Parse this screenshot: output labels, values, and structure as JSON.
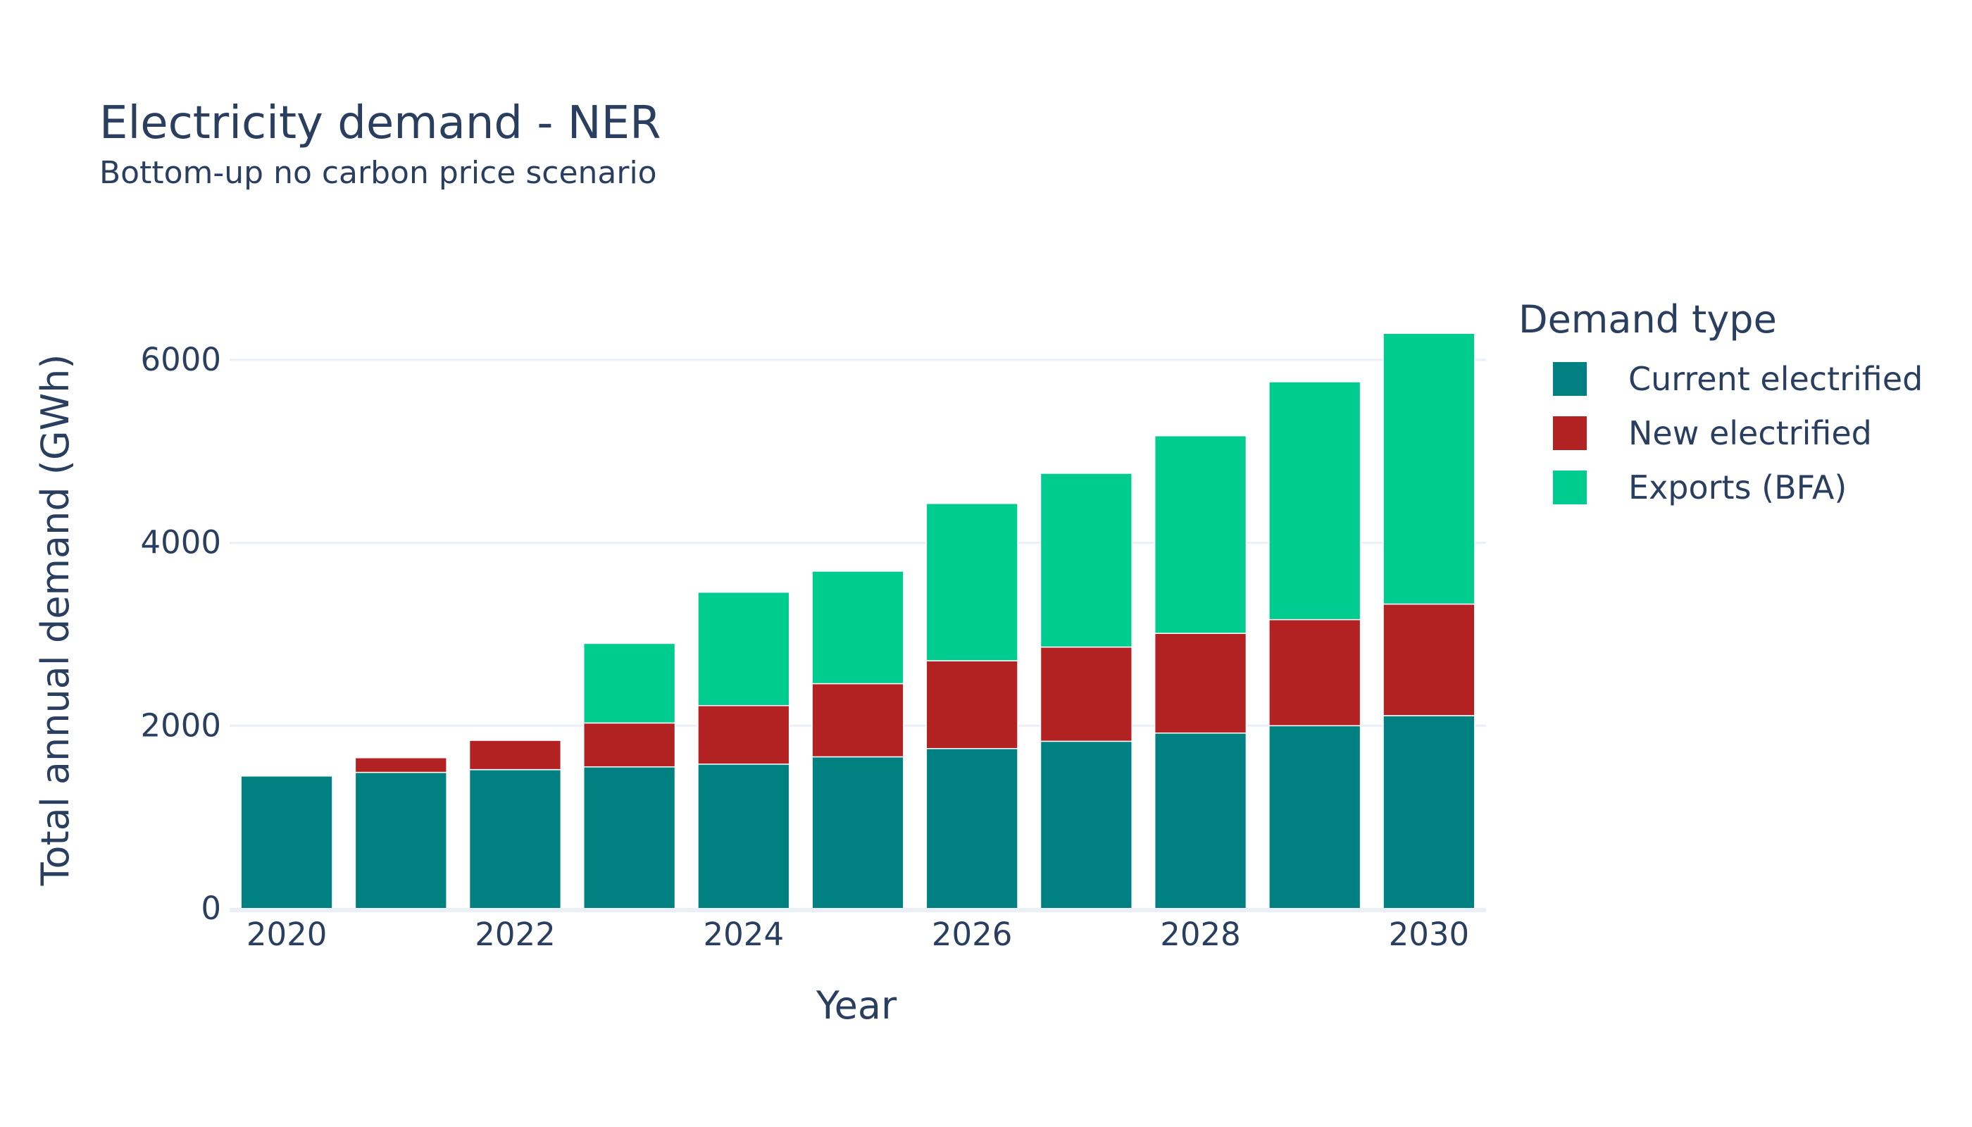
{
  "chart_data": {
    "type": "bar",
    "stacked": true,
    "title": "Electricity demand - NER",
    "subtitle": "Bottom-up no carbon price scenario",
    "xlabel": "Year",
    "ylabel": "Total annual demand (GWh)",
    "categories": [
      "2020",
      "2021",
      "2022",
      "2023",
      "2024",
      "2025",
      "2026",
      "2027",
      "2028",
      "2029",
      "2030"
    ],
    "xticks": [
      "2020",
      "2022",
      "2024",
      "2026",
      "2028",
      "2030"
    ],
    "yticks": [
      "0",
      "2000",
      "4000",
      "6000"
    ],
    "ylim": [
      0,
      6700
    ],
    "grid": true,
    "legend_title": "Demand type",
    "legend_position": "right",
    "series": [
      {
        "name": "Current electrified",
        "color": "#008080",
        "values": [
          1450,
          1490,
          1520,
          1550,
          1580,
          1660,
          1750,
          1830,
          1920,
          2000,
          2110
        ]
      },
      {
        "name": "New electrified",
        "color": "#b22222",
        "values": [
          0,
          160,
          320,
          480,
          640,
          800,
          960,
          1030,
          1090,
          1160,
          1220
        ]
      },
      {
        "name": "Exports (BFA)",
        "color": "#00cc90",
        "values": [
          0,
          0,
          0,
          870,
          1240,
          1230,
          1720,
          1900,
          2160,
          2600,
          2960
        ]
      }
    ]
  }
}
